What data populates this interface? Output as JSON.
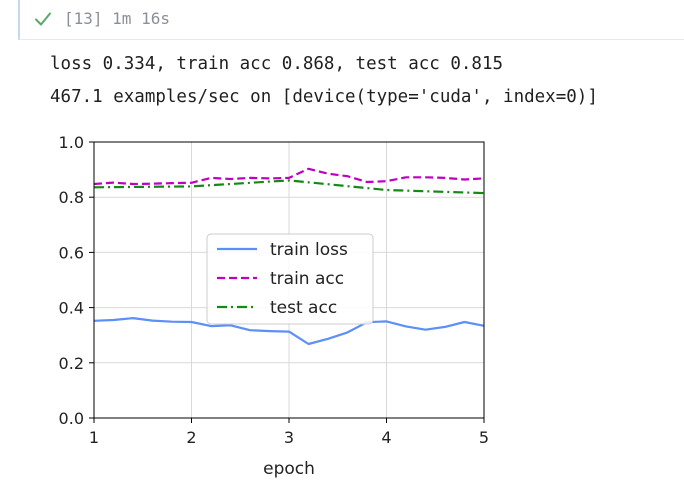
{
  "cell": {
    "execution_count": "[13]",
    "duration": "1m 16s",
    "status_icon": "check-icon",
    "status_color": "#59a869"
  },
  "output": {
    "line1": "loss 0.334, train acc 0.868, test acc 0.815",
    "line2": "467.1 examples/sec on [device(type='cuda', index=0)]"
  },
  "chart_data": {
    "type": "line",
    "xlabel": "epoch",
    "ylabel": "",
    "xlim": [
      1,
      5
    ],
    "ylim": [
      0,
      1
    ],
    "xticks": [
      1,
      2,
      3,
      4,
      5
    ],
    "yticks": [
      0.0,
      0.2,
      0.4,
      0.6,
      0.8,
      1.0
    ],
    "ytick_labels": [
      "0.0",
      "0.2",
      "0.4",
      "0.6",
      "0.8",
      "1.0"
    ],
    "grid": true,
    "legend_position": "center",
    "series": [
      {
        "name": "train loss",
        "color": "#5b8ff9",
        "style": "solid",
        "x": [
          1.0,
          1.2,
          1.4,
          1.6,
          1.8,
          2.0,
          2.2,
          2.4,
          2.6,
          2.8,
          3.0,
          3.2,
          3.4,
          3.6,
          3.8,
          4.0,
          4.2,
          4.4,
          4.6,
          4.8,
          5.0
        ],
        "values": [
          0.352,
          0.355,
          0.362,
          0.353,
          0.349,
          0.348,
          0.333,
          0.336,
          0.318,
          0.315,
          0.313,
          0.268,
          0.287,
          0.31,
          0.347,
          0.35,
          0.332,
          0.32,
          0.33,
          0.348,
          0.334
        ]
      },
      {
        "name": "train acc",
        "color": "#c000c0",
        "style": "dashed",
        "x": [
          1.0,
          1.2,
          1.4,
          1.6,
          1.8,
          2.0,
          2.2,
          2.4,
          2.6,
          2.8,
          3.0,
          3.2,
          3.4,
          3.6,
          3.8,
          4.0,
          4.2,
          4.4,
          4.6,
          4.8,
          5.0
        ],
        "values": [
          0.848,
          0.853,
          0.848,
          0.849,
          0.851,
          0.852,
          0.87,
          0.866,
          0.87,
          0.868,
          0.87,
          0.903,
          0.885,
          0.876,
          0.855,
          0.858,
          0.872,
          0.872,
          0.87,
          0.864,
          0.868
        ]
      },
      {
        "name": "test acc",
        "color": "#148a14",
        "style": "dashdot",
        "x": [
          1,
          2,
          3,
          4,
          5
        ],
        "values": [
          0.836,
          0.839,
          0.861,
          0.826,
          0.815
        ]
      }
    ]
  }
}
